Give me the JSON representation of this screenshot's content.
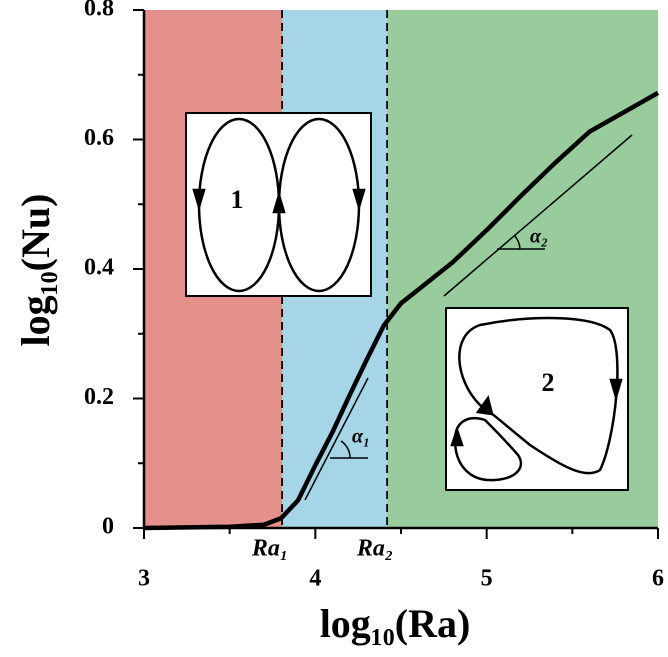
{
  "chart_data": {
    "type": "line",
    "xlabel": "log₁₀(Ra)",
    "ylabel": "log₁₀(Nu)",
    "x": [
      3,
      3.5,
      3.7,
      3.8,
      3.9,
      4.0,
      4.1,
      4.2,
      4.3,
      4.4,
      4.5,
      4.6,
      4.8,
      5.0,
      5.2,
      5.4,
      5.6,
      5.8,
      6.0
    ],
    "values": [
      0,
      0.002,
      0.005,
      0.015,
      0.043,
      0.097,
      0.148,
      0.205,
      0.26,
      0.313,
      0.347,
      0.368,
      0.41,
      0.46,
      0.513,
      0.564,
      0.612,
      0.642,
      0.672
    ],
    "color": "#000000",
    "xlim": [
      3,
      6
    ],
    "xticks": [
      3,
      4,
      5,
      6
    ],
    "xminorticks": [
      3.5,
      4.5,
      5.5
    ],
    "ylim": [
      0,
      0.8
    ],
    "yticks": [
      0,
      0.2,
      0.4,
      0.6,
      0.8
    ],
    "yminorticks": [
      0.1,
      0.3,
      0.5,
      0.7
    ],
    "regions": [
      {
        "xlim": [
          3,
          3.806
        ],
        "color": "#e4918b"
      },
      {
        "xlim": [
          3.806,
          4.419
        ],
        "color": "#a5d5e6"
      },
      {
        "xlim": [
          4.419,
          6
        ],
        "color": "#99cc9c"
      }
    ],
    "thresholds": [
      {
        "value": 3.806,
        "label": "Ra₁"
      },
      {
        "value": 4.419,
        "label": "Ra₂"
      }
    ],
    "annotations": {
      "alpha1": "α₁",
      "alpha2": "α₂",
      "regime1": "1",
      "regime2": "2"
    }
  }
}
